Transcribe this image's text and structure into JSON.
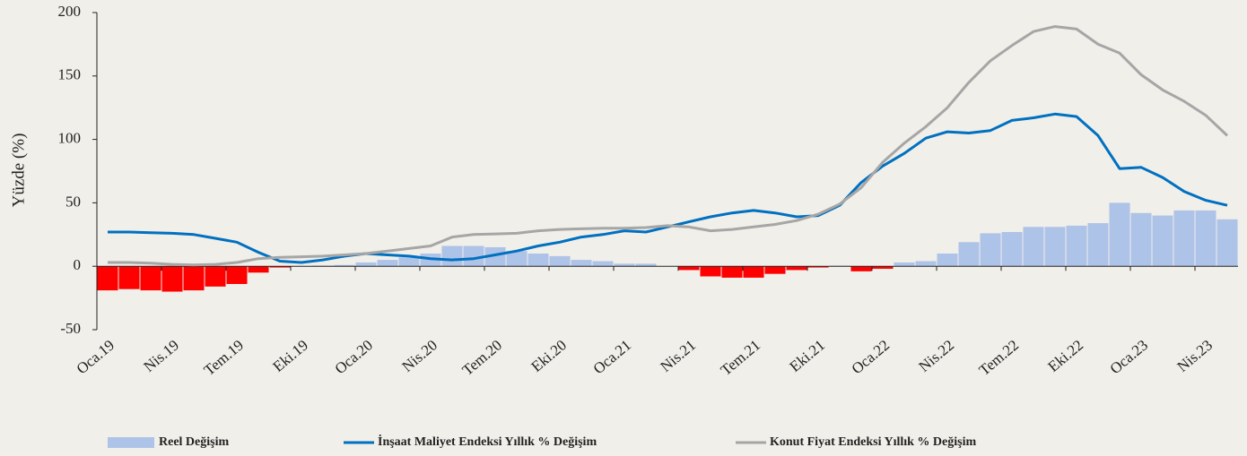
{
  "chart_data": {
    "type": "combo",
    "y_label": "Yüzde (%)",
    "categories": [
      "Oca.19",
      null,
      null,
      "Nis.19",
      null,
      null,
      "Tem.19",
      null,
      null,
      "Eki.19",
      null,
      null,
      "Oca.20",
      null,
      null,
      "Nis.20",
      null,
      null,
      "Tem.20",
      null,
      null,
      "Eki.20",
      null,
      null,
      "Oca.21",
      null,
      null,
      "Nis.21",
      null,
      null,
      "Tem.21",
      null,
      null,
      "Eki.21",
      null,
      null,
      "Oca.22",
      null,
      null,
      "Nis.22",
      null,
      null,
      "Tem.22",
      null,
      null,
      "Eki.22",
      null,
      null,
      "Oca.23",
      null,
      null,
      "Nis.23",
      null
    ],
    "ylim": [
      -50,
      200
    ],
    "yticks": [
      -50,
      0,
      50,
      100,
      150,
      200
    ],
    "series": [
      {
        "name": "Reel Değişim",
        "type": "bar",
        "color": "#aec3e8",
        "negative_color": "#ff0000",
        "values": [
          -19,
          -18,
          -19,
          -20,
          -19,
          -16,
          -14,
          -5,
          -1,
          0,
          0.5,
          1,
          3,
          5,
          7,
          10,
          16,
          16,
          15,
          12,
          10,
          8,
          5,
          4,
          2,
          2,
          0,
          -3,
          -8,
          -9,
          -9,
          -6,
          -3,
          -1,
          0.5,
          -4,
          -2,
          3,
          4,
          10,
          19,
          26,
          27,
          31,
          31,
          32,
          34,
          50,
          42,
          40,
          44,
          44,
          37
        ]
      },
      {
        "name": "İnşaat Maliyet Endeksi Yıllık % Değişim",
        "type": "line",
        "color": "#0070c0",
        "values": [
          27,
          27,
          26.5,
          26,
          25,
          22,
          19,
          11,
          4,
          3,
          5,
          8,
          10,
          9,
          8,
          6,
          5,
          6,
          9,
          12,
          16,
          19,
          23,
          25,
          28,
          27,
          31,
          35,
          39,
          42,
          44,
          42,
          39,
          40,
          48,
          66,
          79,
          89,
          101,
          106,
          105,
          107,
          115,
          117,
          120,
          118,
          103,
          77,
          78,
          70,
          59,
          52,
          48
        ]
      },
      {
        "name": "Konut Fiyat Endeksi Yıllık % Değişim",
        "type": "line",
        "color": "#a6a6a6",
        "values": [
          3,
          3,
          2.5,
          1.5,
          1,
          1.5,
          3,
          6,
          7,
          7.5,
          8,
          9,
          10,
          12,
          14,
          16,
          23,
          25,
          25.5,
          26,
          28,
          29,
          29.5,
          30,
          30,
          30.5,
          32,
          31,
          28,
          29,
          31,
          33,
          36,
          41,
          49,
          62,
          82,
          97,
          110,
          125,
          145,
          162,
          174,
          185,
          189,
          187,
          175,
          168,
          151,
          139,
          130,
          119,
          103
        ]
      }
    ]
  }
}
